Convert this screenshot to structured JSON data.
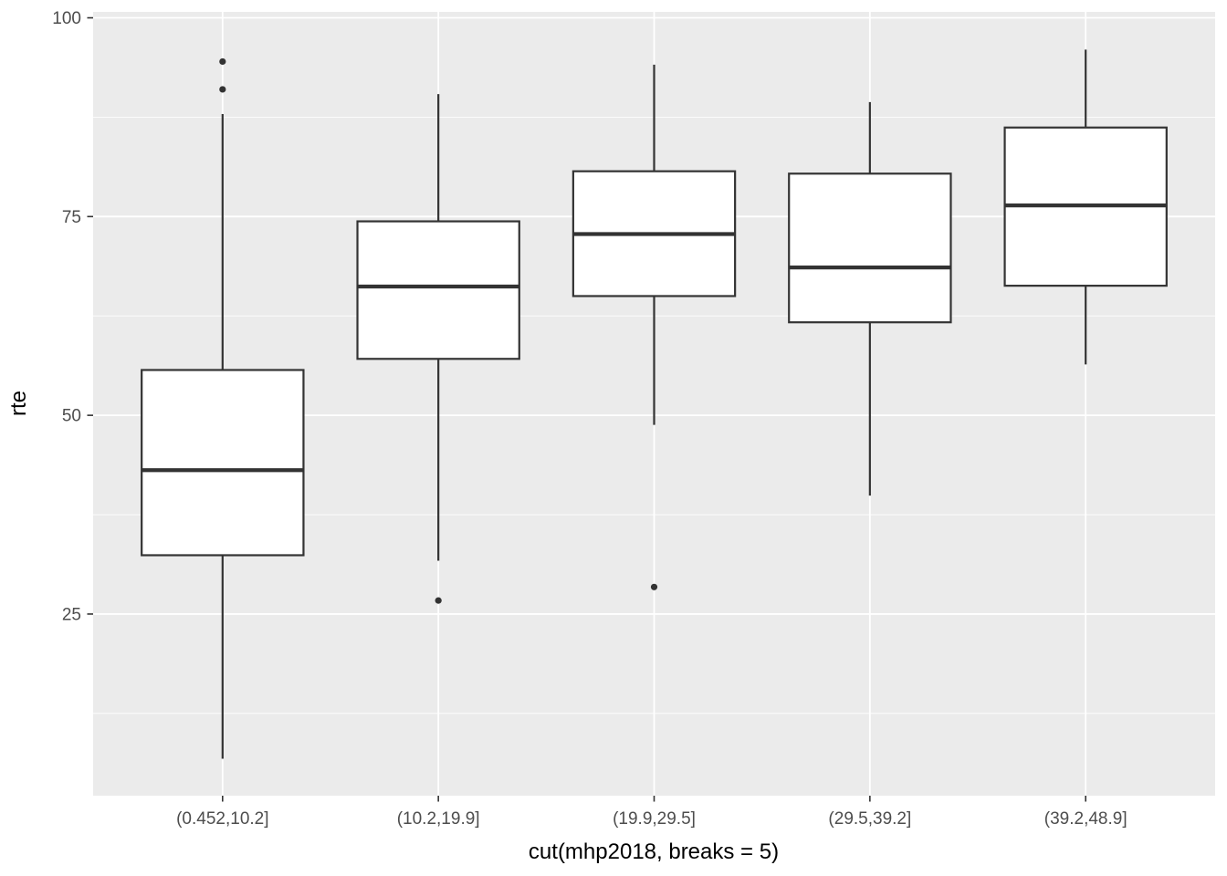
{
  "chart_data": {
    "type": "boxplot",
    "title": "",
    "xlabel": "cut(mhp2018, breaks = 5)",
    "ylabel": "rte",
    "categories": [
      "(0.452,10.2]",
      "(10.2,19.9]",
      "(19.9,29.5]",
      "(29.5,39.2]",
      "(39.2,48.9]"
    ],
    "series": [
      {
        "category": "(0.452,10.2]",
        "whisker_low": 6.8,
        "q1": 32.4,
        "median": 43.1,
        "q3": 55.7,
        "whisker_high": 87.9,
        "outliers": [
          94.5,
          91.0
        ]
      },
      {
        "category": "(10.2,19.9]",
        "whisker_low": 31.7,
        "q1": 57.1,
        "median": 66.2,
        "q3": 74.4,
        "whisker_high": 90.4,
        "outliers": [
          26.7
        ]
      },
      {
        "category": "(19.9,29.5]",
        "whisker_low": 48.8,
        "q1": 65.0,
        "median": 72.8,
        "q3": 80.7,
        "whisker_high": 94.1,
        "outliers": [
          28.4
        ]
      },
      {
        "category": "(29.5,39.2]",
        "whisker_low": 39.9,
        "q1": 61.7,
        "median": 68.6,
        "q3": 80.4,
        "whisker_high": 89.4,
        "outliers": []
      },
      {
        "category": "(39.2,48.9]",
        "whisker_low": 56.4,
        "q1": 66.3,
        "median": 76.4,
        "q3": 86.2,
        "whisker_high": 96.0,
        "outliers": []
      }
    ],
    "y_ticks": [
      25,
      50,
      75,
      100
    ],
    "y_minor_gridlines": [
      12.5,
      37.5,
      62.5,
      87.5
    ],
    "ylim": [
      2.15,
      100.75
    ],
    "grid": true,
    "legend": "none",
    "colors": {
      "panel_background": "#EBEBEB",
      "gridline": "#FFFFFF",
      "box_stroke": "#333333",
      "box_fill": "#FFFFFF",
      "outlier": "#333333",
      "tick_mark": "#333333",
      "tick_label": "#4D4D4D",
      "axis_title": "#000000"
    }
  }
}
